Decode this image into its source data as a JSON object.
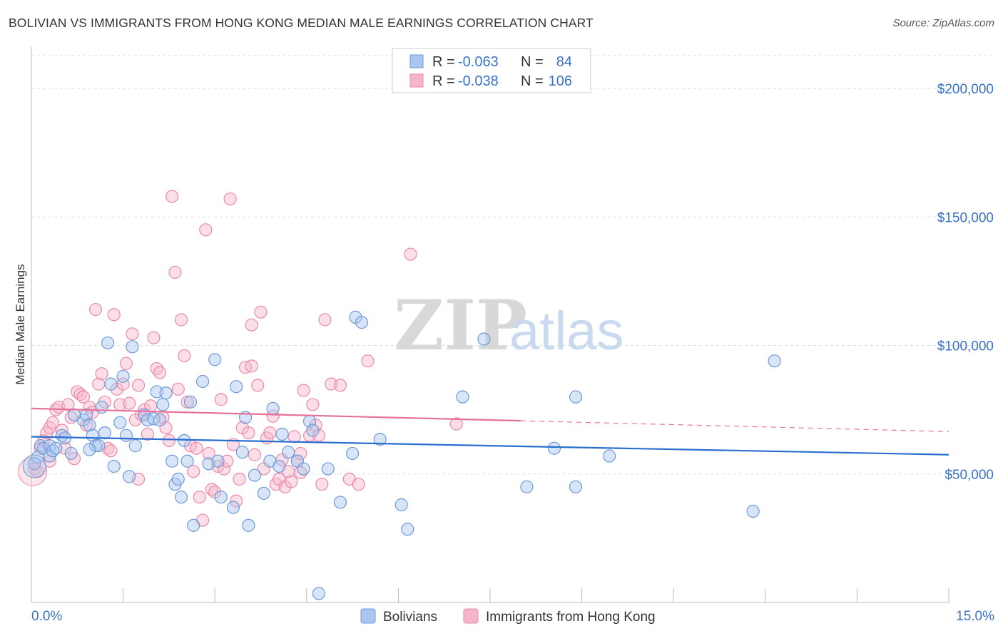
{
  "header": {
    "title": "BOLIVIAN VS IMMIGRANTS FROM HONG KONG MEDIAN MALE EARNINGS CORRELATION CHART",
    "source": "Source: ZipAtlas.com"
  },
  "watermark": {
    "zip": "ZIP",
    "atlas": "atlas"
  },
  "legend": {
    "r_label": "R =",
    "n_label": "N =",
    "entries": [
      {
        "r": "-0.063",
        "n": "84",
        "color": "#a9c6ef"
      },
      {
        "r": "-0.038",
        "n": "106",
        "color": "#f6b6c9"
      }
    ]
  },
  "bottom_legend": [
    "Bolivians",
    "Immigrants from Hong Kong"
  ],
  "colors": {
    "blue_fill": "#a9c6ef",
    "blue_stroke": "#6f9ad6",
    "blue_line": "#2a6fd0",
    "pink_fill": "#f6b6c9",
    "pink_stroke": "#e98aa8",
    "pink_line": "#e8719a",
    "grid": "#dddddd",
    "axis_text": "#3a72c4"
  },
  "chart_data": {
    "type": "scatter",
    "title": "BOLIVIAN VS IMMIGRANTS FROM HONG KONG MEDIAN MALE EARNINGS CORRELATION CHART",
    "ylabel": "Median Male Earnings",
    "xlabel": "",
    "xlim": [
      0,
      15.0
    ],
    "ylim": [
      0,
      215000
    ],
    "x_tick_labels": [
      "0.0%",
      "15.0%"
    ],
    "y_ticks": [
      {
        "value": 50000,
        "label": "$50,000"
      },
      {
        "value": 100000,
        "label": "$100,000"
      },
      {
        "value": 150000,
        "label": "$150,000"
      },
      {
        "value": 200000,
        "label": "$200,000"
      }
    ],
    "grid": "horizontal dashed",
    "legend_placement": "top-center",
    "series": [
      {
        "name": "Bolivians",
        "r": -0.063,
        "n": 84,
        "trend": {
          "x": [
            0.0,
            15.0
          ],
          "y": [
            64500,
            57500
          ],
          "dashed_from": null
        },
        "points": [
          [
            0.05,
            54000
          ],
          [
            0.1,
            56500
          ],
          [
            0.15,
            61000
          ],
          [
            0.2,
            60000
          ],
          [
            0.3,
            61000
          ],
          [
            0.3,
            57000
          ],
          [
            0.35,
            59000
          ],
          [
            0.5,
            65000
          ],
          [
            0.55,
            64000
          ],
          [
            0.65,
            58000
          ],
          [
            0.85,
            71000
          ],
          [
            0.9,
            73000
          ],
          [
            0.95,
            69000
          ],
          [
            1.0,
            65000
          ],
          [
            1.05,
            61000
          ],
          [
            1.1,
            61000
          ],
          [
            1.15,
            76000
          ],
          [
            1.2,
            66000
          ],
          [
            1.25,
            101000
          ],
          [
            1.3,
            85000
          ],
          [
            1.35,
            53000
          ],
          [
            1.45,
            70000
          ],
          [
            1.5,
            88000
          ],
          [
            1.55,
            65000
          ],
          [
            1.6,
            49000
          ],
          [
            1.65,
            99500
          ],
          [
            1.7,
            61000
          ],
          [
            1.85,
            73000
          ],
          [
            1.9,
            71000
          ],
          [
            2.0,
            71500
          ],
          [
            2.05,
            82000
          ],
          [
            2.1,
            71000
          ],
          [
            2.15,
            77000
          ],
          [
            2.2,
            81500
          ],
          [
            2.3,
            55000
          ],
          [
            2.35,
            46000
          ],
          [
            2.4,
            48000
          ],
          [
            2.45,
            41000
          ],
          [
            2.5,
            63000
          ],
          [
            2.55,
            55000
          ],
          [
            2.6,
            78000
          ],
          [
            2.65,
            30000
          ],
          [
            2.8,
            86000
          ],
          [
            2.9,
            54000
          ],
          [
            3.0,
            94500
          ],
          [
            3.05,
            55000
          ],
          [
            3.1,
            41000
          ],
          [
            3.3,
            37000
          ],
          [
            3.35,
            84000
          ],
          [
            3.45,
            58500
          ],
          [
            3.5,
            72000
          ],
          [
            3.55,
            30000
          ],
          [
            3.65,
            49500
          ],
          [
            3.8,
            42500
          ],
          [
            3.9,
            55000
          ],
          [
            3.95,
            75500
          ],
          [
            4.05,
            53000
          ],
          [
            4.1,
            65500
          ],
          [
            4.2,
            58500
          ],
          [
            4.35,
            55000
          ],
          [
            4.45,
            52000
          ],
          [
            4.55,
            70500
          ],
          [
            4.6,
            67000
          ],
          [
            4.7,
            3500
          ],
          [
            4.85,
            52000
          ],
          [
            5.05,
            39000
          ],
          [
            5.25,
            58000
          ],
          [
            5.3,
            111000
          ],
          [
            5.4,
            109000
          ],
          [
            5.7,
            63500
          ],
          [
            6.05,
            38000
          ],
          [
            6.15,
            28500
          ],
          [
            7.05,
            80000
          ],
          [
            7.4,
            102500
          ],
          [
            8.1,
            45000
          ],
          [
            8.55,
            60000
          ],
          [
            8.9,
            80000
          ],
          [
            8.9,
            45000
          ],
          [
            9.45,
            57000
          ],
          [
            11.8,
            35500
          ],
          [
            12.15,
            94000
          ],
          [
            0.4,
            60000
          ],
          [
            0.7,
            73000
          ],
          [
            0.95,
            59500
          ]
        ]
      },
      {
        "name": "Immigrants from Hong Kong",
        "r": -0.038,
        "n": 106,
        "trend": {
          "x": [
            0.0,
            15.0
          ],
          "y": [
            75500,
            66500
          ],
          "dashed_from": 8.0
        },
        "points": [
          [
            0.05,
            52000
          ],
          [
            0.1,
            51000
          ],
          [
            0.15,
            60000
          ],
          [
            0.2,
            63000
          ],
          [
            0.25,
            66000
          ],
          [
            0.3,
            68000
          ],
          [
            0.35,
            70000
          ],
          [
            0.4,
            75000
          ],
          [
            0.45,
            76000
          ],
          [
            0.5,
            67000
          ],
          [
            0.55,
            60000
          ],
          [
            0.6,
            77000
          ],
          [
            0.65,
            72000
          ],
          [
            0.7,
            56000
          ],
          [
            0.75,
            82000
          ],
          [
            0.8,
            81000
          ],
          [
            0.85,
            80000
          ],
          [
            0.9,
            69000
          ],
          [
            0.95,
            76000
          ],
          [
            1.0,
            74000
          ],
          [
            1.05,
            114000
          ],
          [
            1.1,
            85000
          ],
          [
            1.15,
            89000
          ],
          [
            1.2,
            78000
          ],
          [
            1.25,
            60000
          ],
          [
            1.3,
            59000
          ],
          [
            1.35,
            112000
          ],
          [
            1.4,
            83000
          ],
          [
            1.45,
            77000
          ],
          [
            1.5,
            85000
          ],
          [
            1.55,
            93000
          ],
          [
            1.6,
            77500
          ],
          [
            1.65,
            104500
          ],
          [
            1.7,
            71000
          ],
          [
            1.75,
            84500
          ],
          [
            1.8,
            73000
          ],
          [
            1.85,
            75000
          ],
          [
            1.9,
            65500
          ],
          [
            1.95,
            76500
          ],
          [
            2.0,
            103000
          ],
          [
            2.05,
            91000
          ],
          [
            2.1,
            89500
          ],
          [
            2.15,
            72000
          ],
          [
            2.2,
            68000
          ],
          [
            2.25,
            63000
          ],
          [
            2.3,
            158000
          ],
          [
            2.35,
            128500
          ],
          [
            2.4,
            83000
          ],
          [
            2.45,
            110000
          ],
          [
            2.5,
            96000
          ],
          [
            2.55,
            78000
          ],
          [
            2.6,
            61000
          ],
          [
            2.65,
            51000
          ],
          [
            2.7,
            60000
          ],
          [
            2.75,
            41000
          ],
          [
            2.8,
            32000
          ],
          [
            2.85,
            145000
          ],
          [
            2.9,
            58000
          ],
          [
            2.95,
            44000
          ],
          [
            3.0,
            43000
          ],
          [
            3.05,
            53000
          ],
          [
            3.1,
            79000
          ],
          [
            3.15,
            52000
          ],
          [
            3.2,
            55000
          ],
          [
            3.25,
            157000
          ],
          [
            3.3,
            61500
          ],
          [
            3.35,
            39500
          ],
          [
            3.4,
            48000
          ],
          [
            3.45,
            68000
          ],
          [
            3.5,
            91500
          ],
          [
            3.55,
            66000
          ],
          [
            3.6,
            108000
          ],
          [
            3.65,
            57500
          ],
          [
            3.7,
            84500
          ],
          [
            3.75,
            113000
          ],
          [
            3.8,
            52000
          ],
          [
            3.85,
            64000
          ],
          [
            3.9,
            66000
          ],
          [
            3.95,
            72500
          ],
          [
            4.0,
            46000
          ],
          [
            4.05,
            48000
          ],
          [
            4.1,
            55500
          ],
          [
            4.15,
            45000
          ],
          [
            4.2,
            51000
          ],
          [
            4.25,
            47000
          ],
          [
            4.3,
            64500
          ],
          [
            4.35,
            55000
          ],
          [
            4.4,
            58000
          ],
          [
            4.45,
            82500
          ],
          [
            4.55,
            65000
          ],
          [
            4.6,
            77000
          ],
          [
            4.65,
            69000
          ],
          [
            4.7,
            65000
          ],
          [
            4.75,
            46000
          ],
          [
            4.8,
            110000
          ],
          [
            4.9,
            85000
          ],
          [
            5.05,
            84500
          ],
          [
            5.2,
            48000
          ],
          [
            5.35,
            46000
          ],
          [
            5.5,
            94000
          ],
          [
            6.2,
            135500
          ],
          [
            6.95,
            69500
          ],
          [
            1.75,
            48000
          ],
          [
            3.6,
            92000
          ],
          [
            4.4,
            50500
          ],
          [
            0.3,
            55000
          ]
        ]
      }
    ]
  }
}
